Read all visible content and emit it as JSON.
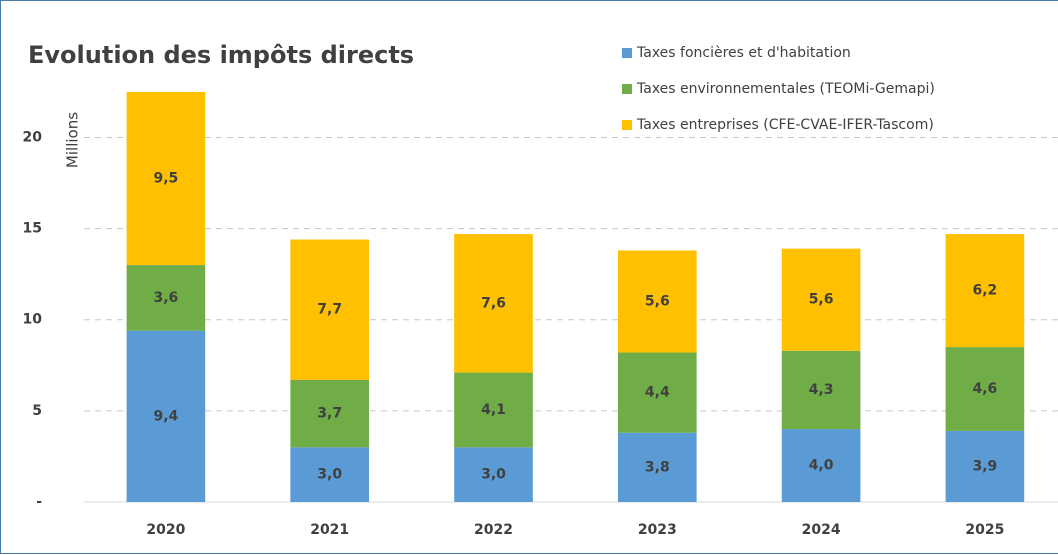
{
  "chart_data": {
    "type": "bar",
    "stacked": true,
    "title": "Evolution des impôts directs",
    "y_label": "Millions",
    "categories": [
      "2020",
      "2021",
      "2022",
      "2023",
      "2024",
      "2025"
    ],
    "series": [
      {
        "name": "Taxes foncières et d'habitation",
        "color": "#5b9bd5",
        "values": [
          9.4,
          3.0,
          3.0,
          3.8,
          4.0,
          3.9
        ],
        "value_labels": [
          "9,4",
          "3,0",
          "3,0",
          "3,8",
          "4,0",
          "3,9"
        ]
      },
      {
        "name": "Taxes environnementales (TEOMi-Gemapi)",
        "color": "#70ad47",
        "values": [
          3.6,
          3.7,
          4.1,
          4.4,
          4.3,
          4.6
        ],
        "value_labels": [
          "3,6",
          "3,7",
          "4,1",
          "4,4",
          "4,3",
          "4,6"
        ]
      },
      {
        "name": "Taxes entreprises (CFE-CVAE-IFER-Tascom)",
        "color": "#ffc000",
        "values": [
          9.5,
          7.7,
          7.6,
          5.6,
          5.6,
          6.2
        ],
        "value_labels": [
          "9,5",
          "7,7",
          "7,6",
          "5,6",
          "5,6",
          "6,2"
        ]
      }
    ],
    "ylim": [
      0,
      22
    ],
    "yticks": [
      {
        "value": 0,
        "label": "-"
      },
      5,
      10,
      15,
      20
    ],
    "grid": true,
    "legend": "top-right"
  }
}
